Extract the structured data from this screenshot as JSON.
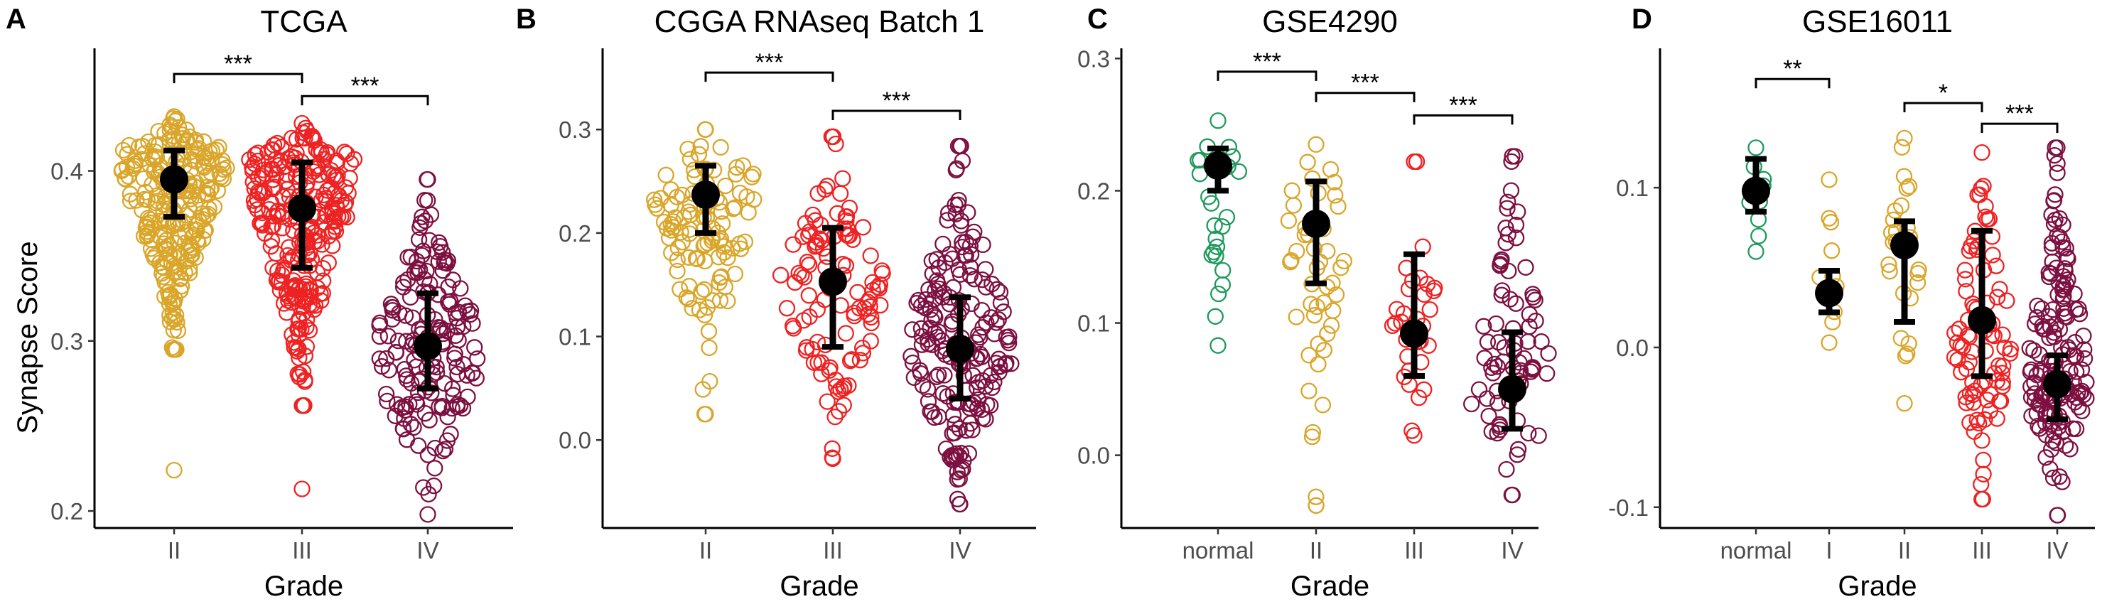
{
  "figure": {
    "ylabel": "Synapse Score",
    "xlabel": "Grade",
    "colors": {
      "normal": "#1e9a5c",
      "I": "#d9a62a",
      "II": "#d9a62a",
      "III": "#ee2222",
      "IV": "#7d1040",
      "summary": "#000000"
    }
  },
  "chart_data": [
    {
      "type": "scatter",
      "panel": "A",
      "title": "TCGA",
      "xlabel": "Grade",
      "ylabel": "Synapse Score",
      "categories": [
        "II",
        "III",
        "IV"
      ],
      "ylim": [
        0.19,
        0.47
      ],
      "yticks": [
        0.2,
        0.3,
        0.4
      ],
      "yticklabels": [
        "0.2",
        "0.3",
        "0.4"
      ],
      "groups": [
        {
          "category": "II",
          "mean": 0.395,
          "lower": 0.373,
          "upper": 0.412,
          "n": 250,
          "min": 0.295,
          "max": 0.432,
          "center": 0.41,
          "outliers": [
            0.224
          ]
        },
        {
          "category": "III",
          "mean": 0.378,
          "lower": 0.343,
          "upper": 0.405,
          "n": 270,
          "min": 0.262,
          "max": 0.428,
          "center": 0.405,
          "outliers": [
            0.213
          ]
        },
        {
          "category": "IV",
          "mean": 0.297,
          "lower": 0.272,
          "upper": 0.328,
          "n": 170,
          "min": 0.198,
          "max": 0.395,
          "center": 0.292,
          "outliers": []
        }
      ],
      "significance": [
        {
          "from": "II",
          "to": "III",
          "label": "***",
          "y": 0.457
        },
        {
          "from": "III",
          "to": "IV",
          "label": "***",
          "y": 0.444
        }
      ]
    },
    {
      "type": "scatter",
      "panel": "B",
      "title": "CGGA RNAseq Batch 1",
      "xlabel": "Grade",
      "ylabel": "",
      "categories": [
        "II",
        "III",
        "IV"
      ],
      "ylim": [
        -0.085,
        0.375
      ],
      "yticks": [
        0.0,
        0.1,
        0.2,
        0.3
      ],
      "yticklabels": [
        "0.0",
        "0.1",
        "0.2",
        "0.3"
      ],
      "groups": [
        {
          "category": "II",
          "mean": 0.237,
          "lower": 0.2,
          "upper": 0.265,
          "n": 110,
          "min": 0.025,
          "max": 0.3,
          "center": 0.255,
          "outliers": []
        },
        {
          "category": "III",
          "mean": 0.153,
          "lower": 0.09,
          "upper": 0.205,
          "n": 110,
          "min": -0.018,
          "max": 0.293,
          "center": 0.15,
          "outliers": []
        },
        {
          "category": "IV",
          "mean": 0.088,
          "lower": 0.04,
          "upper": 0.138,
          "n": 190,
          "min": -0.062,
          "max": 0.284,
          "center": 0.09,
          "outliers": []
        }
      ],
      "significance": [
        {
          "from": "II",
          "to": "III",
          "label": "***",
          "y": 0.355
        },
        {
          "from": "III",
          "to": "IV",
          "label": "***",
          "y": 0.318
        }
      ]
    },
    {
      "type": "scatter",
      "panel": "C",
      "title": "GSE4290",
      "xlabel": "Grade",
      "ylabel": "",
      "categories": [
        "normal",
        "II",
        "III",
        "IV"
      ],
      "ylim": [
        -0.055,
        0.305
      ],
      "yticks": [
        0.0,
        0.1,
        0.2,
        0.3
      ],
      "yticklabels": [
        "0.0",
        "0.1",
        "0.2",
        "0.3"
      ],
      "groups": [
        {
          "category": "normal",
          "mean": 0.219,
          "lower": 0.2,
          "upper": 0.232,
          "n": 23,
          "min": 0.083,
          "max": 0.253,
          "center": 0.22,
          "outliers": []
        },
        {
          "category": "II",
          "mean": 0.175,
          "lower": 0.13,
          "upper": 0.207,
          "n": 45,
          "min": -0.038,
          "max": 0.235,
          "center": 0.2,
          "outliers": []
        },
        {
          "category": "III",
          "mean": 0.092,
          "lower": 0.06,
          "upper": 0.152,
          "n": 31,
          "min": 0.015,
          "max": 0.222,
          "center": 0.09,
          "outliers": []
        },
        {
          "category": "IV",
          "mean": 0.05,
          "lower": 0.02,
          "upper": 0.093,
          "n": 77,
          "min": -0.03,
          "max": 0.226,
          "center": 0.04,
          "outliers": []
        }
      ],
      "significance": [
        {
          "from": "normal",
          "to": "II",
          "label": "***",
          "y": 0.29
        },
        {
          "from": "II",
          "to": "III",
          "label": "***",
          "y": 0.274
        },
        {
          "from": "III",
          "to": "IV",
          "label": "***",
          "y": 0.257
        }
      ]
    },
    {
      "type": "scatter",
      "panel": "D",
      "title": "GSE16011",
      "xlabel": "Grade",
      "ylabel": "",
      "categories": [
        "normal",
        "I",
        "II",
        "III",
        "IV"
      ],
      "ylim": [
        -0.113,
        0.185
      ],
      "yticks": [
        -0.1,
        0.0,
        0.1
      ],
      "yticklabels": [
        "-0.1",
        "0.0",
        "0.1"
      ],
      "groups": [
        {
          "category": "normal",
          "mean": 0.098,
          "lower": 0.085,
          "upper": 0.118,
          "n": 8,
          "min": 0.06,
          "max": 0.125,
          "center": 0.1,
          "outliers": []
        },
        {
          "category": "I",
          "mean": 0.034,
          "lower": 0.022,
          "upper": 0.048,
          "n": 8,
          "min": 0.003,
          "max": 0.105,
          "center": 0.035,
          "outliers": []
        },
        {
          "category": "II",
          "mean": 0.064,
          "lower": 0.016,
          "upper": 0.079,
          "n": 24,
          "min": -0.035,
          "max": 0.131,
          "center": 0.06,
          "outliers": []
        },
        {
          "category": "III",
          "mean": 0.017,
          "lower": -0.018,
          "upper": 0.073,
          "n": 85,
          "min": -0.095,
          "max": 0.122,
          "center": 0.0,
          "outliers": []
        },
        {
          "category": "IV",
          "mean": -0.023,
          "lower": -0.045,
          "upper": -0.005,
          "n": 160,
          "min": -0.105,
          "max": 0.125,
          "center": -0.025,
          "outliers": []
        }
      ],
      "significance": [
        {
          "from": "normal",
          "to": "I",
          "label": "**",
          "y": 0.168
        },
        {
          "from": "II",
          "to": "III",
          "label": "*",
          "y": 0.153
        },
        {
          "from": "III",
          "to": "IV",
          "label": "***",
          "y": 0.14
        }
      ]
    }
  ]
}
